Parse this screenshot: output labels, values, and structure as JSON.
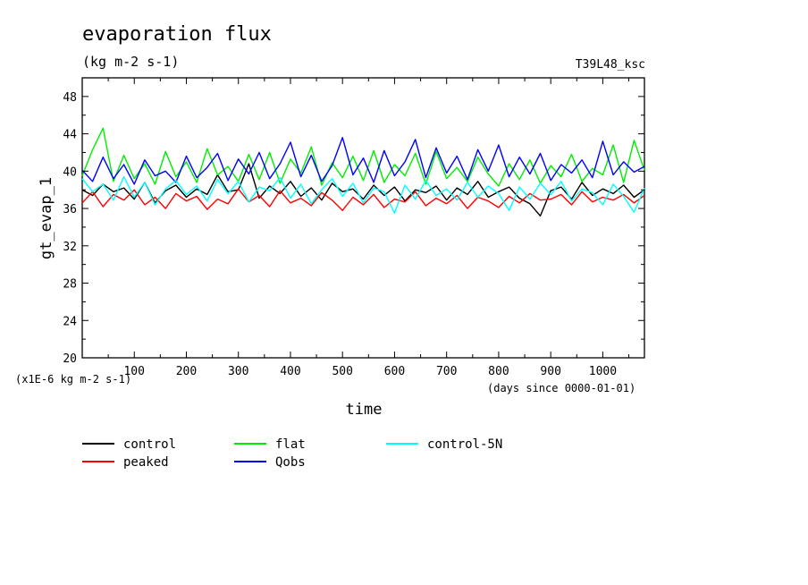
{
  "header": {
    "title": "evaporation flux",
    "units": "(kg m-2 s-1)",
    "experiment": "T39L48_ksc"
  },
  "colors": {
    "control": "#000000",
    "peaked": "#ff0000",
    "flat": "#00ee00",
    "Qobs": "#0000ff",
    "control-5N": "#00ffff"
  },
  "chart_data": {
    "type": "line",
    "title": "evaporation flux",
    "subtitle": "(kg m-2 s-1)",
    "xlabel": "time",
    "ylabel": "gt_evap_1",
    "x_units_note": "(days since 0000-01-01)",
    "y_units_note": "(x1E-6 kg m-2 s-1)",
    "xlim": [
      0,
      1080
    ],
    "ylim": [
      20,
      50
    ],
    "xticks": [
      100,
      200,
      300,
      400,
      500,
      600,
      700,
      800,
      900,
      1000
    ],
    "yticks": [
      20,
      24,
      28,
      32,
      36,
      40,
      44,
      48
    ],
    "grid": false,
    "legend_position": "bottom",
    "series": [
      {
        "name": "control",
        "x": [
          0,
          20,
          40,
          60,
          80,
          100,
          120,
          140,
          160,
          180,
          200,
          220,
          240,
          260,
          280,
          300,
          320,
          340,
          360,
          380,
          400,
          420,
          440,
          460,
          480,
          500,
          520,
          540,
          560,
          580,
          600,
          620,
          640,
          660,
          680,
          700,
          720,
          740,
          760,
          780,
          800,
          820,
          840,
          860,
          880,
          900,
          920,
          940,
          960,
          980,
          1000,
          1020,
          1040,
          1060,
          1080
        ],
        "y": [
          38.0,
          37.4,
          38.6,
          37.8,
          38.2,
          37.0,
          38.8,
          36.6,
          37.9,
          38.5,
          37.2,
          38.1,
          37.5,
          39.6,
          37.8,
          38.0,
          40.8,
          37.1,
          38.4,
          37.6,
          38.9,
          37.3,
          38.2,
          36.9,
          38.7,
          37.8,
          38.1,
          37.0,
          38.5,
          37.4,
          38.3,
          36.8,
          38.0,
          37.7,
          38.4,
          36.9,
          38.2,
          37.5,
          38.9,
          37.2,
          37.8,
          38.3,
          37.1,
          36.5,
          35.2,
          37.9,
          38.3,
          37.0,
          38.8,
          37.4,
          38.1,
          37.6,
          38.5,
          37.2,
          38.0
        ]
      },
      {
        "name": "peaked",
        "x": [
          0,
          20,
          40,
          60,
          80,
          100,
          120,
          140,
          160,
          180,
          200,
          220,
          240,
          260,
          280,
          300,
          320,
          340,
          360,
          380,
          400,
          420,
          440,
          460,
          480,
          500,
          520,
          540,
          560,
          580,
          600,
          620,
          640,
          660,
          680,
          700,
          720,
          740,
          760,
          780,
          800,
          820,
          840,
          860,
          880,
          900,
          920,
          940,
          960,
          980,
          1000,
          1020,
          1040,
          1060,
          1080
        ],
        "y": [
          36.6,
          37.8,
          36.2,
          37.5,
          36.9,
          38.0,
          36.4,
          37.2,
          36.0,
          37.6,
          36.8,
          37.3,
          35.9,
          37.0,
          36.5,
          38.1,
          36.7,
          37.4,
          36.2,
          37.9,
          36.6,
          37.1,
          36.3,
          37.7,
          36.9,
          35.8,
          37.2,
          36.4,
          37.5,
          36.1,
          37.0,
          36.7,
          37.8,
          36.3,
          37.1,
          36.5,
          37.4,
          36.0,
          37.2,
          36.8,
          36.1,
          37.3,
          36.6,
          37.6,
          36.9,
          37.0,
          37.5,
          36.4,
          37.8,
          36.7,
          37.2,
          36.9,
          37.5,
          36.6,
          37.4
        ]
      },
      {
        "name": "flat",
        "x": [
          0,
          20,
          40,
          60,
          80,
          100,
          120,
          140,
          160,
          180,
          200,
          220,
          240,
          260,
          280,
          300,
          320,
          340,
          360,
          380,
          400,
          420,
          440,
          460,
          480,
          500,
          520,
          540,
          560,
          580,
          600,
          620,
          640,
          660,
          680,
          700,
          720,
          740,
          760,
          780,
          800,
          820,
          840,
          860,
          880,
          900,
          920,
          940,
          960,
          980,
          1000,
          1020,
          1040,
          1060,
          1080
        ],
        "y": [
          39.5,
          42.3,
          44.6,
          38.9,
          41.7,
          39.2,
          40.8,
          38.6,
          42.1,
          39.4,
          41.0,
          38.8,
          42.4,
          39.6,
          40.5,
          38.9,
          41.8,
          39.1,
          42.0,
          38.7,
          41.3,
          39.8,
          42.6,
          38.5,
          40.9,
          39.3,
          41.6,
          39.0,
          42.2,
          38.8,
          40.7,
          39.5,
          41.9,
          38.6,
          42.1,
          39.2,
          40.4,
          38.9,
          41.5,
          39.7,
          38.4,
          40.8,
          39.1,
          41.2,
          38.7,
          40.6,
          39.4,
          41.8,
          38.9,
          40.3,
          39.6,
          42.8,
          38.8,
          43.3,
          40.1
        ]
      },
      {
        "name": "Qobs",
        "x": [
          0,
          20,
          40,
          60,
          80,
          100,
          120,
          140,
          160,
          180,
          200,
          220,
          240,
          260,
          280,
          300,
          320,
          340,
          360,
          380,
          400,
          420,
          440,
          460,
          480,
          500,
          520,
          540,
          560,
          580,
          600,
          620,
          640,
          660,
          680,
          700,
          720,
          740,
          760,
          780,
          800,
          820,
          840,
          860,
          880,
          900,
          920,
          940,
          960,
          980,
          1000,
          1020,
          1040,
          1060,
          1080
        ],
        "y": [
          40.1,
          38.9,
          41.5,
          39.2,
          40.7,
          38.6,
          41.2,
          39.5,
          40.0,
          38.8,
          41.6,
          39.3,
          40.4,
          41.9,
          39.0,
          41.3,
          39.7,
          42.0,
          39.2,
          40.8,
          43.1,
          39.4,
          41.7,
          38.9,
          40.6,
          43.6,
          39.6,
          41.4,
          38.8,
          42.2,
          39.5,
          41.0,
          43.4,
          39.3,
          42.5,
          39.8,
          41.6,
          39.1,
          42.3,
          40.0,
          42.8,
          39.4,
          41.5,
          39.7,
          41.9,
          39.0,
          40.7,
          39.8,
          41.2,
          39.3,
          43.2,
          39.6,
          41.0,
          39.9,
          40.5
        ]
      },
      {
        "name": "control-5N",
        "x": [
          0,
          20,
          40,
          60,
          80,
          100,
          120,
          140,
          160,
          180,
          200,
          220,
          240,
          260,
          280,
          300,
          320,
          340,
          360,
          380,
          400,
          420,
          440,
          460,
          480,
          500,
          520,
          540,
          560,
          580,
          600,
          620,
          640,
          660,
          680,
          700,
          720,
          740,
          760,
          780,
          800,
          820,
          840,
          860,
          880,
          900,
          920,
          940,
          960,
          980,
          1000,
          1020,
          1040,
          1060,
          1080
        ],
        "y": [
          39.2,
          37.8,
          38.6,
          36.9,
          39.4,
          37.2,
          38.8,
          36.4,
          38.1,
          39.0,
          37.5,
          38.4,
          36.8,
          39.1,
          37.6,
          38.9,
          36.7,
          38.3,
          37.9,
          39.3,
          37.1,
          38.6,
          36.5,
          38.0,
          39.2,
          37.3,
          38.7,
          36.6,
          38.2,
          37.8,
          35.5,
          38.5,
          37.0,
          39.0,
          37.4,
          38.1,
          36.9,
          38.8,
          37.2,
          38.4,
          37.6,
          35.8,
          38.3,
          37.0,
          38.7,
          37.5,
          38.9,
          36.8,
          38.1,
          37.7,
          36.4,
          38.6,
          37.3,
          35.6,
          38.2
        ]
      }
    ]
  }
}
